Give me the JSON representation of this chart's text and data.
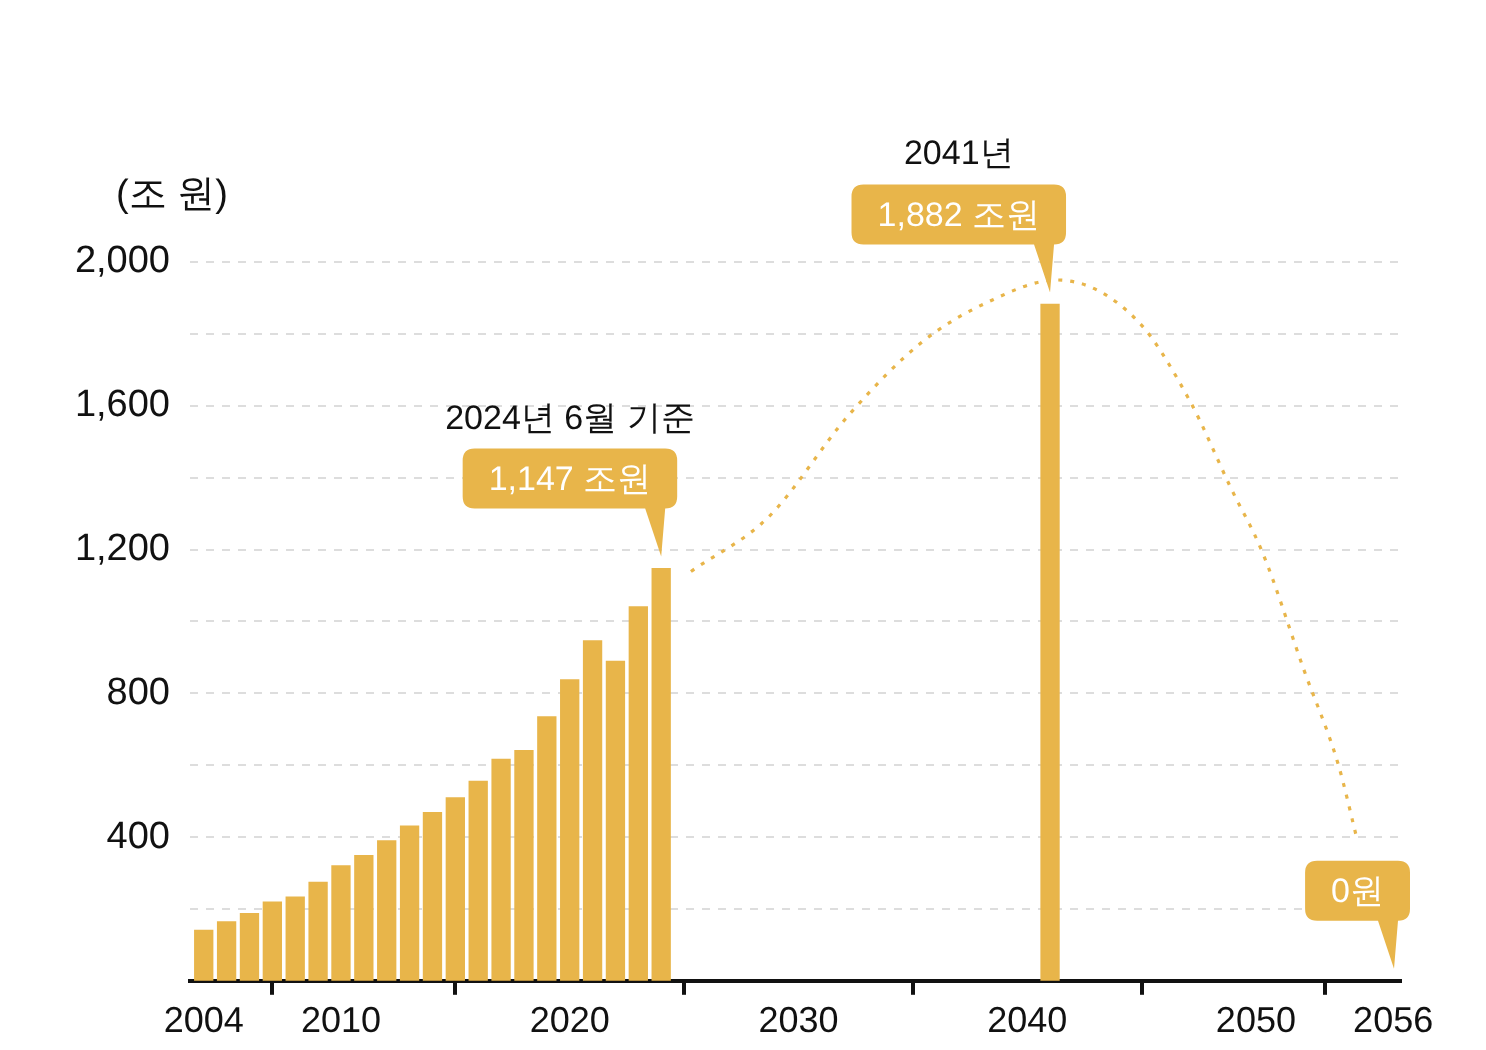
{
  "chart_data": {
    "type": "bar",
    "ylabel": "(조 원)",
    "xlim": [
      2003.4,
      2056.3
    ],
    "xticks": [
      2004,
      2010,
      2020,
      2030,
      2040,
      2050,
      2056
    ],
    "ylim": [
      0,
      2000
    ],
    "yticks": [
      {
        "value": 200,
        "label": null
      },
      400,
      {
        "value": 600,
        "label": null
      },
      800,
      {
        "value": 1000,
        "label": null
      },
      {
        "value": 1200,
        "label": "1,200"
      },
      {
        "value": 1400,
        "label": null
      },
      {
        "value": 1600,
        "label": "1,600"
      },
      {
        "value": 1800,
        "label": null
      },
      {
        "value": 2000,
        "label": "2,000"
      }
    ],
    "grid": "y",
    "legend": false,
    "series": [
      {
        "color": "#e8b54a",
        "x": [
          2004,
          2005,
          2006,
          2007,
          2008,
          2009,
          2010,
          2011,
          2012,
          2013,
          2014,
          2015,
          2016,
          2017,
          2018,
          2019,
          2020,
          2021,
          2022,
          2023,
          2024
        ],
        "values": [
          140,
          164,
          187,
          219,
          233,
          274,
          320,
          348,
          389,
          430,
          468,
          509,
          555,
          616,
          640,
          734,
          837,
          946,
          889,
          1040,
          1147
        ]
      },
      {
        "type": "line",
        "color": "#e8b54a",
        "line_style": "dotted",
        "x": [
          2025.3,
          2028.7,
          2032.2,
          2035.4,
          2038.3,
          2041.3,
          2044.8,
          2047.1,
          2048.9,
          2050.3,
          2052.1,
          2053.6,
          2054.4
        ],
        "values": [
          1139,
          1291,
          1574,
          1777,
          1889,
          1950,
          1838,
          1615,
          1372,
          1190,
          865,
          602,
          400
        ]
      },
      {
        "type": "bar",
        "color": "#e8b54a",
        "x": [
          2041
        ],
        "values": [
          1882
        ]
      }
    ],
    "annotations": [
      "2024년 6월 기준",
      {
        "text": "1,147 조원",
        "x": 2024,
        "y": 1147
      },
      "2041년",
      {
        "text": "1,882 조원",
        "x": 2041,
        "y": 1882
      },
      "0원"
    ]
  }
}
